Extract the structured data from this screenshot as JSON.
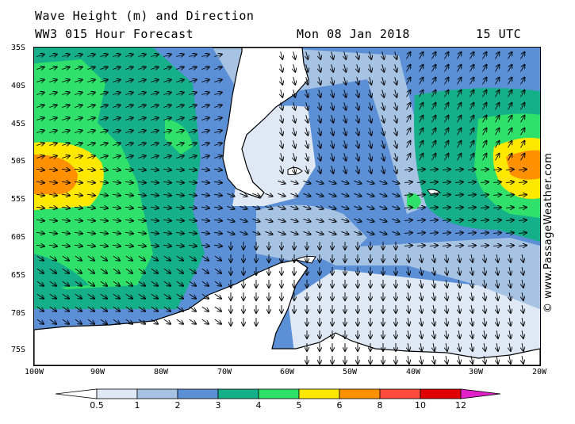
{
  "header": {
    "title": "Wave Height (m) and Direction",
    "subtitle": "WW3 015 Hour Forecast",
    "date": "Mon 08 Jan 2018",
    "time": "15 UTC"
  },
  "axes": {
    "lat_labels": [
      "35S",
      "40S",
      "45S",
      "50S",
      "55S",
      "60S",
      "65S",
      "70S",
      "75S"
    ],
    "lon_labels": [
      "100W",
      "90W",
      "80W",
      "70W",
      "60W",
      "50W",
      "40W",
      "30W",
      "20W"
    ]
  },
  "legend": {
    "ticks": [
      "0.5",
      "1",
      "2",
      "3",
      "4",
      "5",
      "6",
      "8",
      "10",
      "12"
    ],
    "colors": [
      "#ffffff",
      "#dfe8f5",
      "#a7c3e4",
      "#5b8fd6",
      "#15b08a",
      "#2fe06a",
      "#ffe800",
      "#ff9000",
      "#ff4a3c",
      "#e00000",
      "#e020c8"
    ]
  },
  "credit": "© www.PassageWeather.com",
  "map_colors": {
    "ocean_low": "#dfe8f5",
    "ocean_1_2": "#a7c3e4",
    "ocean_2_3": "#5b8fd6",
    "ocean_3_4": "#15b08a",
    "ocean_4_5": "#2fe06a",
    "ocean_5_6": "#ffe800",
    "ocean_6_8": "#ff9000",
    "land": "#ffffff"
  }
}
